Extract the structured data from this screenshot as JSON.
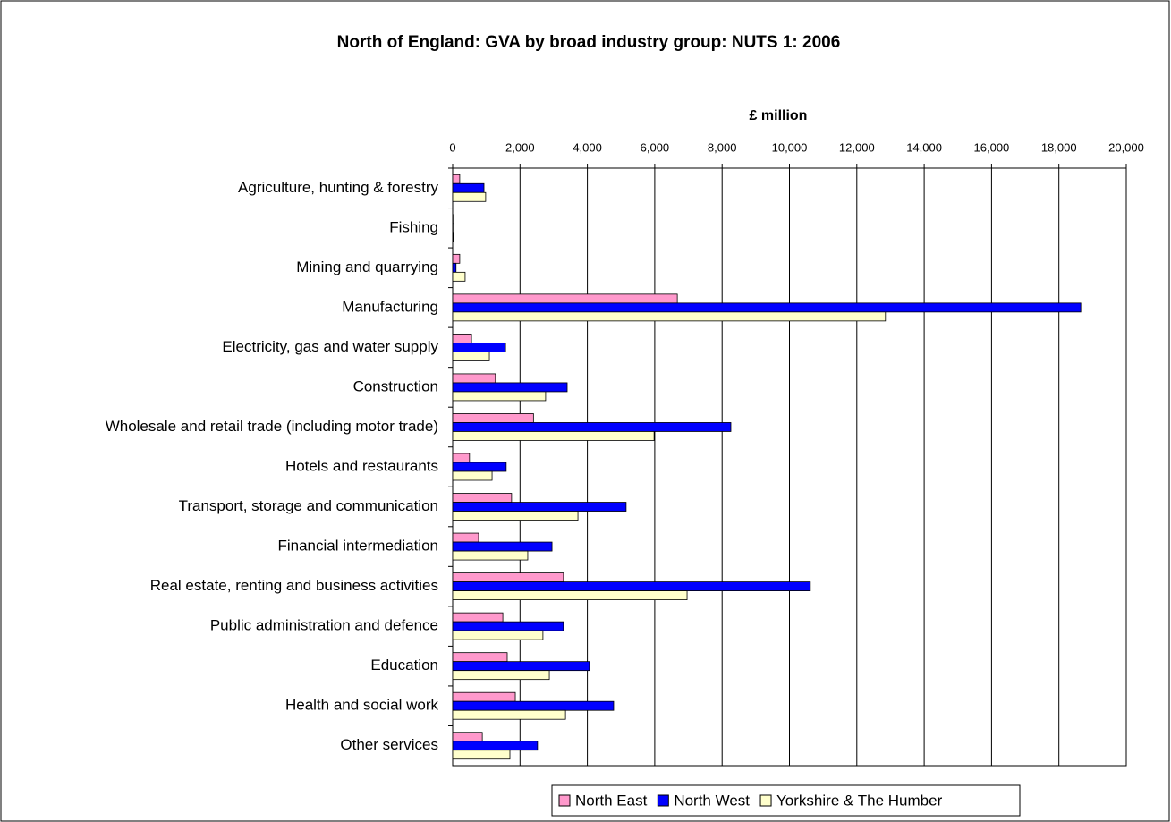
{
  "chart_data": {
    "type": "hbar",
    "title": "North of England: GVA by broad industry group: NUTS 1: 2006",
    "x_label": "£ million",
    "categories": [
      "Agriculture, hunting & forestry",
      "Fishing",
      "Mining and quarrying",
      "Manufacturing",
      "Electricity, gas and water supply",
      "Construction",
      "Wholesale and retail trade (including motor trade)",
      "Hotels and restaurants",
      "Transport, storage and communication",
      "Financial intermediation",
      "Real estate, renting and business activities",
      "Public administration and defence",
      "Education",
      "Health and social work",
      "Other services"
    ],
    "series": [
      {
        "name": "North East",
        "color": "#ff99cc",
        "values": [
          210,
          10,
          210,
          6670,
          560,
          1270,
          2400,
          500,
          1750,
          770,
          3290,
          1490,
          1620,
          1860,
          880
        ]
      },
      {
        "name": "North West",
        "color": "#0000ff",
        "values": [
          930,
          10,
          100,
          18650,
          1570,
          3400,
          8260,
          1590,
          5150,
          2950,
          10620,
          3290,
          4060,
          4780,
          2520
        ]
      },
      {
        "name": "Yorkshire & The Humber",
        "color": "#ffffcc",
        "values": [
          980,
          20,
          370,
          12850,
          1090,
          2760,
          5980,
          1170,
          3720,
          2230,
          6960,
          2680,
          2870,
          3350,
          1700
        ]
      }
    ],
    "xlim": [
      0,
      20000
    ],
    "xticks": [
      0,
      {
        "value": 2000,
        "label": "2,000"
      },
      {
        "value": 4000,
        "label": "4,000"
      },
      {
        "value": 6000,
        "label": "6,000"
      },
      {
        "value": 8000,
        "label": "8,000"
      },
      {
        "value": 10000,
        "label": "10,000"
      },
      {
        "value": 12000,
        "label": "12,000"
      },
      {
        "value": 14000,
        "label": "14,000"
      },
      {
        "value": 16000,
        "label": "16,000"
      },
      {
        "value": 18000,
        "label": "18,000"
      },
      {
        "value": 20000,
        "label": "20,000"
      }
    ],
    "grid": true,
    "legend": "bottom"
  }
}
